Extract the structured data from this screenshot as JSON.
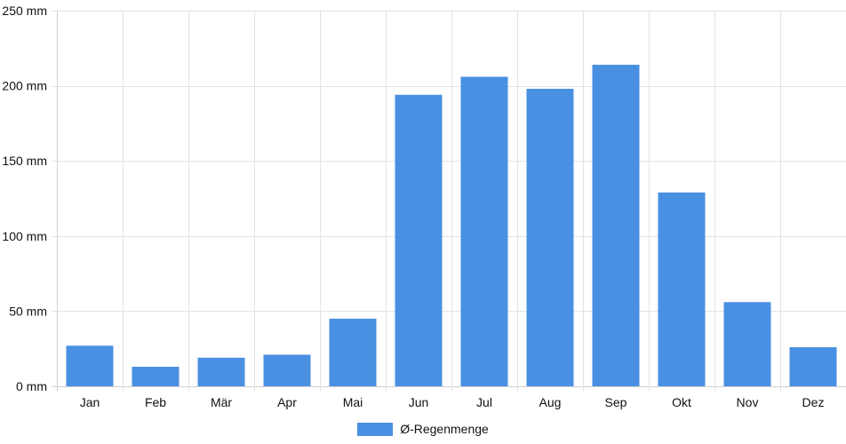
{
  "chart_data": {
    "type": "bar",
    "categories": [
      "Jan",
      "Feb",
      "Mär",
      "Apr",
      "Mai",
      "Jun",
      "Jul",
      "Aug",
      "Sep",
      "Okt",
      "Nov",
      "Dez"
    ],
    "series": [
      {
        "name": "Ø-Regenmenge",
        "values": [
          27,
          13,
          19,
          21,
          45,
          194,
          206,
          198,
          214,
          129,
          56,
          26
        ],
        "color": "#4a90e2"
      }
    ],
    "y_ticks": [
      "0 mm",
      "50 mm",
      "100 mm",
      "150 mm",
      "200 mm",
      "250 mm"
    ],
    "ylim": [
      0,
      250
    ],
    "grid": true,
    "legend_position": "bottom"
  }
}
